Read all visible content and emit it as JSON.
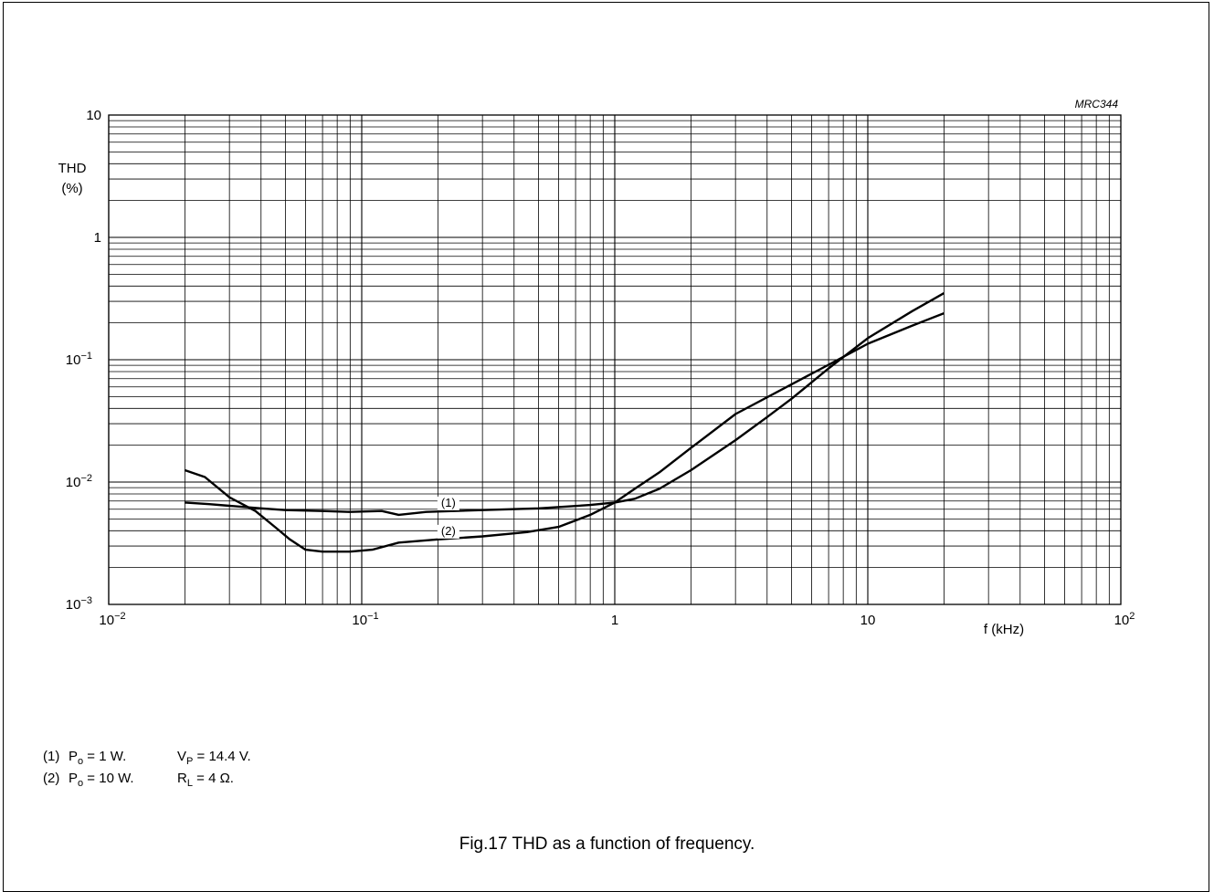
{
  "figure_code": "MRC344",
  "caption": "Fig.17  THD as a function of frequency.",
  "chart_data": {
    "type": "line",
    "title": "",
    "x_scale": "log",
    "y_scale": "log",
    "xlim": [
      0.01,
      100
    ],
    "ylim": [
      0.001,
      10
    ],
    "xlabel": "f (kHz)",
    "ylabel_line1": "THD",
    "ylabel_line2": "(%)",
    "x_ticks": [
      {
        "value": 0.01,
        "base": "10",
        "exp": "−2"
      },
      {
        "value": 0.1,
        "base": "10",
        "exp": "−1"
      },
      {
        "value": 1,
        "base": "1",
        "exp": ""
      },
      {
        "value": 10,
        "base": "10",
        "exp": ""
      },
      {
        "value": 100,
        "base": "10",
        "exp": "2"
      }
    ],
    "y_ticks": [
      {
        "value": 10,
        "base": "10",
        "exp": ""
      },
      {
        "value": 1,
        "base": "1",
        "exp": ""
      },
      {
        "value": 0.1,
        "base": "10",
        "exp": "−1"
      },
      {
        "value": 0.01,
        "base": "10",
        "exp": "−2"
      },
      {
        "value": 0.001,
        "base": "10",
        "exp": "−3"
      }
    ],
    "grid": true,
    "series": [
      {
        "name": "(1)",
        "points": [
          [
            0.02,
            0.0068
          ],
          [
            0.025,
            0.0066
          ],
          [
            0.03,
            0.0064
          ],
          [
            0.04,
            0.0061
          ],
          [
            0.05,
            0.0059
          ],
          [
            0.07,
            0.0058
          ],
          [
            0.09,
            0.0057
          ],
          [
            0.12,
            0.0058
          ],
          [
            0.14,
            0.0054
          ],
          [
            0.18,
            0.0057
          ],
          [
            0.3,
            0.0059
          ],
          [
            0.5,
            0.0061
          ],
          [
            0.8,
            0.0065
          ],
          [
            1.0,
            0.0068
          ],
          [
            1.2,
            0.0073
          ],
          [
            1.5,
            0.0088
          ],
          [
            2.0,
            0.0125
          ],
          [
            3.0,
            0.022
          ],
          [
            4.0,
            0.034
          ],
          [
            5.0,
            0.048
          ],
          [
            7.0,
            0.085
          ],
          [
            10.0,
            0.15
          ],
          [
            15.0,
            0.25
          ],
          [
            20.0,
            0.35
          ]
        ]
      },
      {
        "name": "(2)",
        "points": [
          [
            0.02,
            0.0125
          ],
          [
            0.024,
            0.011
          ],
          [
            0.03,
            0.0075
          ],
          [
            0.038,
            0.0058
          ],
          [
            0.046,
            0.0042
          ],
          [
            0.052,
            0.0034
          ],
          [
            0.06,
            0.0028
          ],
          [
            0.07,
            0.0027
          ],
          [
            0.09,
            0.0027
          ],
          [
            0.11,
            0.0028
          ],
          [
            0.14,
            0.0032
          ],
          [
            0.2,
            0.0034
          ],
          [
            0.3,
            0.0036
          ],
          [
            0.45,
            0.0039
          ],
          [
            0.6,
            0.0043
          ],
          [
            0.8,
            0.0054
          ],
          [
            1.0,
            0.0068
          ],
          [
            1.2,
            0.0088
          ],
          [
            1.5,
            0.012
          ],
          [
            2.0,
            0.019
          ],
          [
            3.0,
            0.036
          ],
          [
            5.0,
            0.063
          ],
          [
            7.0,
            0.091
          ],
          [
            10.0,
            0.135
          ],
          [
            15.0,
            0.19
          ],
          [
            20.0,
            0.24
          ]
        ]
      }
    ],
    "curve_labels": [
      {
        "text": "(1)",
        "x": 0.22,
        "y": 0.0063
      },
      {
        "text": "(2)",
        "x": 0.22,
        "y": 0.0037
      }
    ]
  },
  "legend": {
    "rows": [
      {
        "num": "(1)",
        "left_main": "P",
        "left_sub": "o",
        "left_rest": " = 1 W.",
        "right_main": "V",
        "right_sub": "P",
        "right_rest": " = 14.4 V."
      },
      {
        "num": "(2)",
        "left_main": "P",
        "left_sub": "o",
        "left_rest": " = 10 W.",
        "right_main": "R",
        "right_sub": "L",
        "right_rest": " = 4 Ω."
      }
    ]
  }
}
